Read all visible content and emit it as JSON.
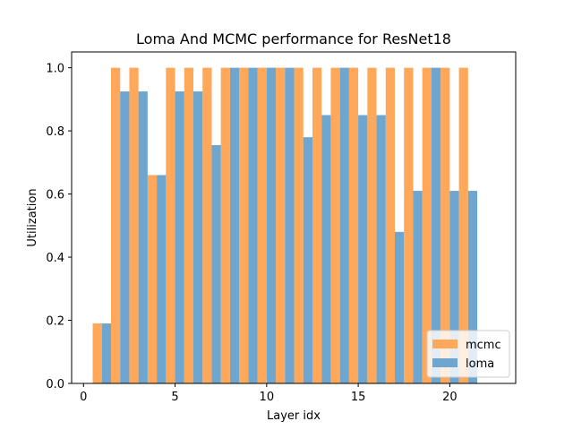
{
  "chart_data": {
    "type": "bar",
    "title": "Loma And MCMC performance for ResNet18",
    "xlabel": "Layer idx",
    "ylabel": "Utilization",
    "xlim": [
      -0.65,
      23.6
    ],
    "ylim": [
      0.0,
      1.05
    ],
    "xticks": [
      0,
      5,
      10,
      15,
      20
    ],
    "yticks": [
      0.0,
      0.2,
      0.4,
      0.6,
      0.8,
      1.0
    ],
    "xtick_labels": [
      "0",
      "5",
      "10",
      "15",
      "20"
    ],
    "ytick_labels": [
      "0.0",
      "0.2",
      "0.4",
      "0.6",
      "0.8",
      "1.0"
    ],
    "bar_width": 0.5,
    "legend_position": "lower right",
    "grid": false,
    "series": [
      {
        "name": "mcmc",
        "color": "#ffa85a",
        "x": [
          0.75,
          1.75,
          2.75,
          3.75,
          4.75,
          5.75,
          6.75,
          7.75,
          8.75,
          9.75,
          10.75,
          11.75,
          12.75,
          13.75,
          14.75,
          15.75,
          16.75,
          17.75,
          18.75,
          19.75,
          20.75
        ],
        "values": [
          0.19,
          1.0,
          1.0,
          0.66,
          1.0,
          1.0,
          1.0,
          1.0,
          1.0,
          1.0,
          1.0,
          1.0,
          1.0,
          1.0,
          1.0,
          1.0,
          1.0,
          1.0,
          1.0,
          1.0,
          1.0
        ]
      },
      {
        "name": "loma",
        "color": "#6fa6cf",
        "x": [
          1.25,
          2.25,
          3.25,
          4.25,
          5.25,
          6.25,
          7.25,
          8.25,
          9.25,
          10.25,
          11.25,
          12.25,
          13.25,
          14.25,
          15.25,
          16.25,
          17.25,
          18.25,
          19.25,
          20.25,
          21.25
        ],
        "values": [
          0.19,
          0.925,
          0.925,
          0.66,
          0.925,
          0.925,
          0.755,
          1.0,
          1.0,
          1.0,
          1.0,
          0.78,
          0.85,
          1.0,
          0.85,
          0.85,
          0.48,
          0.61,
          1.0,
          0.61,
          0.61
        ]
      }
    ]
  }
}
